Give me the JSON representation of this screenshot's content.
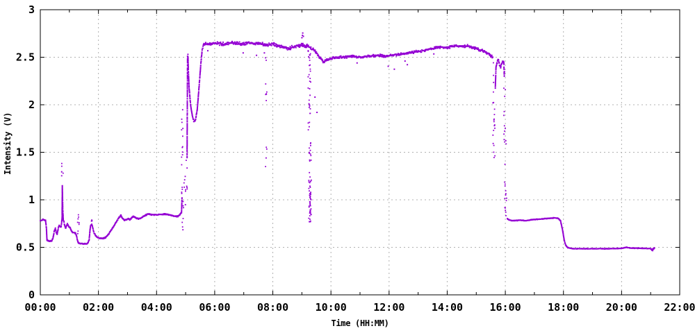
{
  "chart_data": {
    "type": "scatter",
    "title": "",
    "xlabel": "Time (HH:MM)",
    "ylabel": "Intensity (V)",
    "xlim": [
      0,
      22
    ],
    "ylim": [
      0,
      3
    ],
    "grid": {
      "on": true,
      "style": "dashed",
      "color": "#b0b0b0"
    },
    "legend": "none",
    "axis_color": "#000000",
    "series_color": "#9400d3",
    "x_major_ticks": [
      {
        "t": 0,
        "label": "00:00"
      },
      {
        "t": 2,
        "label": "02:00"
      },
      {
        "t": 4,
        "label": "04:00"
      },
      {
        "t": 6,
        "label": "06:00"
      },
      {
        "t": 8,
        "label": "08:00"
      },
      {
        "t": 10,
        "label": "10:00"
      },
      {
        "t": 12,
        "label": "12:00"
      },
      {
        "t": 14,
        "label": "14:00"
      },
      {
        "t": 16,
        "label": "16:00"
      },
      {
        "t": 18,
        "label": "18:00"
      },
      {
        "t": 20,
        "label": "20:00"
      },
      {
        "t": 22,
        "label": "22:00"
      }
    ],
    "x_minor_ticks": [
      1,
      3,
      5,
      7,
      9,
      11,
      13,
      15,
      17,
      19,
      21
    ],
    "y_major_ticks": [
      {
        "v": 0,
        "label": "0"
      },
      {
        "v": 0.5,
        "label": "0.5"
      },
      {
        "v": 1,
        "label": "1"
      },
      {
        "v": 1.5,
        "label": "1.5"
      },
      {
        "v": 2,
        "label": "2"
      },
      {
        "v": 2.5,
        "label": "2.5"
      },
      {
        "v": 3,
        "label": "3"
      }
    ],
    "trace_segments": [
      [
        [
          0,
          0.78
        ],
        [
          0.08,
          0.79
        ],
        [
          0.18,
          0.785
        ],
        [
          0.21,
          0.7
        ],
        [
          0.23,
          0.575
        ],
        [
          0.32,
          0.565
        ],
        [
          0.4,
          0.57
        ],
        [
          0.44,
          0.6
        ],
        [
          0.48,
          0.67
        ],
        [
          0.52,
          0.7
        ],
        [
          0.55,
          0.655
        ],
        [
          0.58,
          0.64
        ],
        [
          0.62,
          0.7
        ],
        [
          0.65,
          0.73
        ],
        [
          0.68,
          0.72
        ],
        [
          0.71,
          0.71
        ],
        [
          0.735,
          0.76
        ],
        [
          0.75,
          0.82
        ],
        [
          0.757,
          1.15
        ],
        [
          0.765,
          1.02
        ],
        [
          0.775,
          0.88
        ],
        [
          0.79,
          0.79
        ],
        [
          0.81,
          0.77
        ],
        [
          0.84,
          0.73
        ],
        [
          0.87,
          0.7
        ],
        [
          0.9,
          0.72
        ],
        [
          0.93,
          0.75
        ],
        [
          0.96,
          0.73
        ],
        [
          1.0,
          0.715
        ],
        [
          1.05,
          0.69
        ],
        [
          1.1,
          0.66
        ],
        [
          1.16,
          0.655
        ],
        [
          1.22,
          0.645
        ],
        [
          1.26,
          0.6
        ],
        [
          1.3,
          0.55
        ],
        [
          1.36,
          0.54
        ],
        [
          1.48,
          0.535
        ],
        [
          1.58,
          0.535
        ],
        [
          1.64,
          0.545
        ],
        [
          1.68,
          0.58
        ],
        [
          1.71,
          0.68
        ],
        [
          1.73,
          0.73
        ],
        [
          1.77,
          0.74
        ],
        [
          1.8,
          0.71
        ],
        [
          1.84,
          0.66
        ],
        [
          1.9,
          0.625
        ],
        [
          1.97,
          0.605
        ],
        [
          2.05,
          0.595
        ],
        [
          2.15,
          0.595
        ],
        [
          2.25,
          0.605
        ],
        [
          2.35,
          0.64
        ],
        [
          2.45,
          0.685
        ],
        [
          2.55,
          0.735
        ],
        [
          2.64,
          0.78
        ],
        [
          2.71,
          0.815
        ],
        [
          2.77,
          0.835
        ],
        [
          2.83,
          0.805
        ],
        [
          2.9,
          0.785
        ],
        [
          2.97,
          0.79
        ],
        [
          3.03,
          0.805
        ],
        [
          3.08,
          0.79
        ],
        [
          3.14,
          0.81
        ],
        [
          3.2,
          0.825
        ],
        [
          3.28,
          0.81
        ],
        [
          3.36,
          0.8
        ],
        [
          3.46,
          0.805
        ],
        [
          3.58,
          0.83
        ],
        [
          3.7,
          0.85
        ],
        [
          3.82,
          0.845
        ],
        [
          3.95,
          0.84
        ],
        [
          4.08,
          0.845
        ],
        [
          4.22,
          0.85
        ],
        [
          4.36,
          0.845
        ],
        [
          4.5,
          0.835
        ],
        [
          4.62,
          0.825
        ],
        [
          4.72,
          0.825
        ],
        [
          4.8,
          0.84
        ],
        [
          4.86,
          0.87
        ],
        [
          4.875,
          1.02
        ]
      ],
      [
        [
          5.05,
          1.45
        ],
        [
          5.065,
          2.5
        ],
        [
          5.08,
          2.52
        ],
        [
          5.095,
          2.35
        ],
        [
          5.12,
          2.18
        ],
        [
          5.17,
          2.0
        ],
        [
          5.23,
          1.88
        ],
        [
          5.28,
          1.83
        ],
        [
          5.34,
          1.84
        ],
        [
          5.4,
          1.95
        ],
        [
          5.46,
          2.18
        ],
        [
          5.52,
          2.42
        ],
        [
          5.57,
          2.58
        ],
        [
          5.62,
          2.63
        ],
        [
          5.75,
          2.64
        ],
        [
          6.0,
          2.65
        ],
        [
          6.3,
          2.64
        ],
        [
          6.6,
          2.65
        ],
        [
          6.9,
          2.64
        ],
        [
          7.2,
          2.65
        ],
        [
          7.5,
          2.64
        ],
        [
          7.8,
          2.63
        ],
        [
          8.0,
          2.64
        ],
        [
          8.2,
          2.62
        ],
        [
          8.45,
          2.6
        ],
        [
          8.55,
          2.59
        ],
        [
          8.7,
          2.61
        ],
        [
          8.9,
          2.62
        ],
        [
          9.0,
          2.63
        ],
        [
          9.1,
          2.62
        ],
        [
          9.2,
          2.62
        ],
        [
          9.3,
          2.6
        ],
        [
          9.4,
          2.58
        ],
        [
          9.5,
          2.55
        ],
        [
          9.6,
          2.5
        ],
        [
          9.7,
          2.47
        ],
        [
          9.75,
          2.44
        ],
        [
          9.82,
          2.47
        ],
        [
          9.95,
          2.48
        ],
        [
          10.1,
          2.5
        ],
        [
          10.4,
          2.5
        ],
        [
          10.7,
          2.51
        ],
        [
          11.0,
          2.5
        ],
        [
          11.3,
          2.51
        ],
        [
          11.6,
          2.52
        ],
        [
          11.9,
          2.51
        ],
        [
          12.1,
          2.52
        ],
        [
          12.4,
          2.53
        ],
        [
          12.7,
          2.55
        ],
        [
          13.0,
          2.56
        ],
        [
          13.3,
          2.58
        ],
        [
          13.6,
          2.6
        ],
        [
          13.8,
          2.61
        ],
        [
          13.95,
          2.6
        ],
        [
          14.1,
          2.61
        ],
        [
          14.3,
          2.62
        ],
        [
          14.5,
          2.61
        ],
        [
          14.7,
          2.62
        ],
        [
          14.9,
          2.6
        ],
        [
          15.1,
          2.58
        ],
        [
          15.3,
          2.56
        ],
        [
          15.45,
          2.53
        ],
        [
          15.57,
          2.5
        ]
      ],
      [
        [
          15.655,
          2.18
        ],
        [
          15.68,
          2.4
        ],
        [
          15.72,
          2.45
        ],
        [
          15.76,
          2.47
        ],
        [
          15.8,
          2.42
        ],
        [
          15.84,
          2.39
        ],
        [
          15.88,
          2.44
        ],
        [
          15.92,
          2.46
        ],
        [
          15.95,
          2.44
        ],
        [
          15.965,
          2.3
        ]
      ],
      [
        [
          16.07,
          0.8
        ],
        [
          16.15,
          0.785
        ],
        [
          16.3,
          0.78
        ],
        [
          16.5,
          0.785
        ],
        [
          16.7,
          0.78
        ],
        [
          16.9,
          0.79
        ],
        [
          17.1,
          0.795
        ],
        [
          17.3,
          0.8
        ],
        [
          17.5,
          0.805
        ],
        [
          17.7,
          0.81
        ],
        [
          17.82,
          0.805
        ],
        [
          17.9,
          0.78
        ],
        [
          17.97,
          0.68
        ],
        [
          18.03,
          0.57
        ],
        [
          18.08,
          0.52
        ],
        [
          18.15,
          0.497
        ],
        [
          18.3,
          0.487
        ],
        [
          18.6,
          0.485
        ],
        [
          18.9,
          0.485
        ],
        [
          19.2,
          0.486
        ],
        [
          19.5,
          0.485
        ],
        [
          19.8,
          0.487
        ],
        [
          20.05,
          0.49
        ],
        [
          20.15,
          0.5
        ],
        [
          20.3,
          0.492
        ],
        [
          20.6,
          0.49
        ],
        [
          20.9,
          0.488
        ],
        [
          21.0,
          0.487
        ],
        [
          21.05,
          0.47
        ],
        [
          21.1,
          0.49
        ],
        [
          21.13,
          0.49
        ]
      ]
    ],
    "dropout_columns": [
      {
        "t": 0.762,
        "v1": 1.18,
        "v2": 1.39,
        "n": 7
      },
      {
        "t": 1.315,
        "v1": 0.62,
        "v2": 0.91,
        "n": 8
      },
      {
        "t": 1.755,
        "v1": 0.76,
        "v2": 0.8,
        "n": 3
      },
      {
        "t": 4.88,
        "v1": 1.05,
        "v2": 2.12,
        "n": 16
      },
      {
        "t": 4.91,
        "v1": 0.6,
        "v2": 1.0,
        "n": 7
      },
      {
        "t": 4.97,
        "v1": 0.88,
        "v2": 1.32,
        "n": 7
      },
      {
        "t": 5.03,
        "v1": 1.05,
        "v2": 1.44,
        "n": 6
      },
      {
        "t": 7.77,
        "v1": 1.95,
        "v2": 2.55,
        "n": 8
      },
      {
        "t": 7.78,
        "v1": 1.24,
        "v2": 1.72,
        "n": 4
      },
      {
        "t": 9.245,
        "v1": 0.8,
        "v2": 2.58,
        "n": 26
      },
      {
        "t": 9.28,
        "v1": 0.76,
        "v2": 2.55,
        "n": 34
      },
      {
        "t": 9.3,
        "v1": 0.78,
        "v2": 1.6,
        "n": 18
      },
      {
        "t": 9.29,
        "v1": 0.76,
        "v2": 1.05,
        "n": 16
      },
      {
        "t": 15.605,
        "v1": 1.44,
        "v2": 2.46,
        "n": 16
      },
      {
        "t": 15.625,
        "v1": 1.42,
        "v2": 1.9,
        "n": 6
      },
      {
        "t": 15.98,
        "v1": 1.6,
        "v2": 2.4,
        "n": 12
      },
      {
        "t": 16.005,
        "v1": 0.85,
        "v2": 1.65,
        "n": 12
      },
      {
        "t": 16.02,
        "v1": 0.8,
        "v2": 1.1,
        "n": 6
      }
    ],
    "stray_dots": [
      [
        9.0,
        2.705
      ],
      [
        9.02,
        2.73
      ],
      [
        9.03,
        2.755
      ],
      [
        9.05,
        2.72
      ],
      [
        6.98,
        2.545
      ],
      [
        7.44,
        2.52
      ],
      [
        7.71,
        2.545
      ],
      [
        9.45,
        2.08
      ],
      [
        9.52,
        1.92
      ],
      [
        10.9,
        2.44
      ],
      [
        12.55,
        2.46
      ],
      [
        21.07,
        0.466
      ],
      [
        21.1,
        0.48
      ],
      [
        21.12,
        0.495
      ]
    ],
    "noise_segments": [
      {
        "from": 0,
        "to": 4.875,
        "amp": 0.007,
        "speck": 0
      },
      {
        "from": 5.05,
        "to": 5.62,
        "amp": 0.012,
        "speck": 0
      },
      {
        "from": 5.62,
        "to": 9.22,
        "amp": 0.02,
        "speck": 0.01
      },
      {
        "from": 9.22,
        "to": 15.57,
        "amp": 0.016,
        "speck": 0.006
      },
      {
        "from": 15.655,
        "to": 15.965,
        "amp": 0.014,
        "speck": 0
      },
      {
        "from": 16.07,
        "to": 17.92,
        "amp": 0.004,
        "speck": 0
      },
      {
        "from": 17.92,
        "to": 21.14,
        "amp": 0.0035,
        "speck": 0
      }
    ]
  }
}
